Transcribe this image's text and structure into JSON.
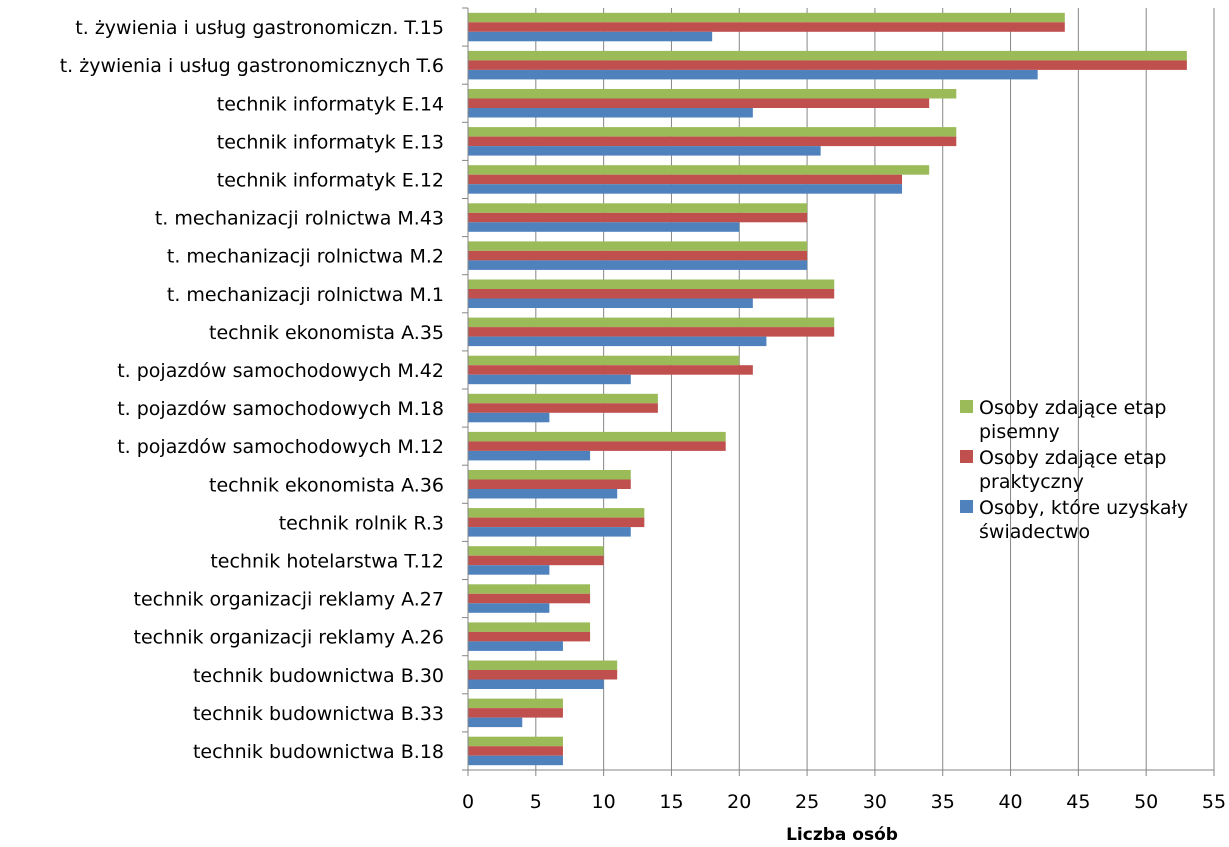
{
  "chart_data": {
    "type": "bar",
    "orientation": "horizontal",
    "categories": [
      "t. żywienia i usług gastronomiczn. T.15",
      "t. żywienia i usług gastronomicznych T.6",
      "technik informatyk E.14",
      "technik informatyk E.13",
      "technik informatyk E.12",
      "t. mechanizacji rolnictwa M.43",
      "t. mechanizacji rolnictwa M.2",
      "t. mechanizacji rolnictwa M.1",
      "technik ekonomista A.35",
      "t. pojazdów samochodowych M.42",
      "t. pojazdów samochodowych M.18",
      "t. pojazdów samochodowych M.12",
      "technik ekonomista A.36",
      "technik rolnik R.3",
      "technik hotelarstwa T.12",
      "technik organizacji reklamy A.27",
      "technik organizacji reklamy A.26",
      "technik budownictwa B.30",
      "technik budownictwa B.33",
      "technik budownictwa B.18"
    ],
    "series": [
      {
        "name": "Osoby zdające etap pisemny",
        "color": "#9BBB59",
        "values": [
          44,
          53,
          36,
          36,
          34,
          25,
          25,
          27,
          27,
          20,
          14,
          19,
          12,
          13,
          10,
          9,
          9,
          11,
          7,
          7
        ]
      },
      {
        "name": "Osoby zdające etap praktyczny",
        "color": "#C0504D",
        "values": [
          44,
          53,
          34,
          36,
          32,
          25,
          25,
          27,
          27,
          21,
          14,
          19,
          12,
          13,
          10,
          9,
          9,
          11,
          7,
          7
        ]
      },
      {
        "name": "Osoby, które uzyskały świadectwo",
        "color": "#4F81BD",
        "values": [
          18,
          42,
          21,
          26,
          32,
          20,
          25,
          21,
          22,
          12,
          6,
          9,
          11,
          12,
          6,
          6,
          7,
          10,
          4,
          7
        ]
      }
    ],
    "xlabel": "Liczba osób",
    "xlim": [
      0,
      55
    ],
    "xticks": [
      0,
      5,
      10,
      15,
      20,
      25,
      30,
      35,
      40,
      45,
      50,
      55
    ],
    "grid": true,
    "legend_position": "right",
    "legend_lines": [
      [
        "Osoby zdające etap",
        "pisemny"
      ],
      [
        "Osoby zdające etap",
        "praktyczny"
      ],
      [
        "Osoby, które uzyskały",
        "świadectwo"
      ]
    ],
    "grid_color": "#868686",
    "axis_color": "#868686"
  }
}
